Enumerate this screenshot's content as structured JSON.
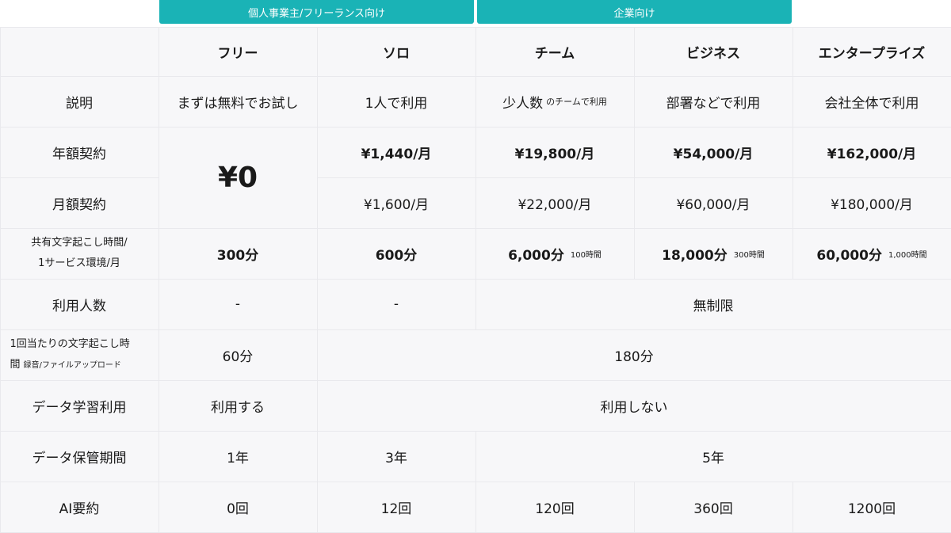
{
  "groups": {
    "individual": "個人事業主/フリーランス向け",
    "enterprise": "企業向け"
  },
  "plans": [
    "フリー",
    "ソロ",
    "チーム",
    "ビジネス",
    "エンタープライズ"
  ],
  "rows": {
    "description": {
      "label": "説明",
      "free": "まずは無料でお試し",
      "solo": "1人で利用",
      "team": "少人数",
      "team_note": "のチームで利用",
      "business": "部署などで利用",
      "enterprise": "会社全体で利用"
    },
    "annual": {
      "label": "年額契約",
      "solo": "¥1,440/月",
      "team": "¥19,800/月",
      "business": "¥54,000/月",
      "enterprise": "¥162,000/月"
    },
    "free_price": "¥0",
    "monthly": {
      "label": "月額契約",
      "solo": "¥1,600/月",
      "team": "¥22,000/月",
      "business": "¥60,000/月",
      "enterprise": "¥180,000/月"
    },
    "shared": {
      "label1": "共有文字起こし時間/",
      "label2": "1サービス環境/月",
      "free": "300分",
      "solo": "600分",
      "team": "6,000分",
      "team_note": "100時間",
      "business": "18,000分",
      "business_note": "300時間",
      "enterprise": "60,000分",
      "enterprise_note": "1,000時間"
    },
    "users": {
      "label": "利用人数",
      "free": "-",
      "solo": "-",
      "others": "無制限"
    },
    "per_session": {
      "label1": "1回当たりの文字起こし時",
      "label2": "間",
      "label_note": "録音/ファイルアップロード",
      "free": "60分",
      "others": "180分"
    },
    "training": {
      "label": "データ学習利用",
      "free": "利用する",
      "others": "利用しない"
    },
    "retention": {
      "label": "データ保管期間",
      "free": "1年",
      "solo": "3年",
      "others": "5年"
    },
    "ai_summary": {
      "label": "AI要約",
      "free": "0回",
      "solo": "12回",
      "team": "120回",
      "business": "360回",
      "enterprise": "1200回"
    }
  }
}
